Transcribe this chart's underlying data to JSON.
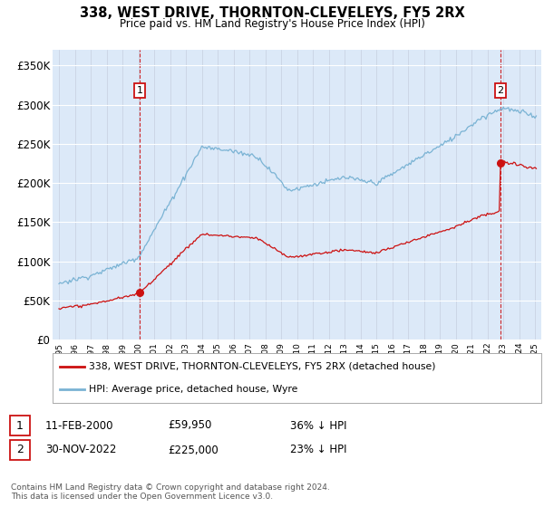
{
  "title": "338, WEST DRIVE, THORNTON-CLEVELEYS, FY5 2RX",
  "subtitle": "Price paid vs. HM Land Registry's House Price Index (HPI)",
  "ylabel_ticks": [
    "£0",
    "£50K",
    "£100K",
    "£150K",
    "£200K",
    "£250K",
    "£300K",
    "£350K"
  ],
  "ytick_values": [
    0,
    50000,
    100000,
    150000,
    200000,
    250000,
    300000,
    350000
  ],
  "ylim": [
    0,
    370000
  ],
  "plot_bg": "#dce9f8",
  "line_color_hpi": "#7ab3d4",
  "line_color_price": "#cc1111",
  "sale1_price": 59950,
  "sale1_year": 2000.08,
  "sale2_price": 225000,
  "sale2_year": 2022.87,
  "legend_label_price": "338, WEST DRIVE, THORNTON-CLEVELEYS, FY5 2RX (detached house)",
  "legend_label_hpi": "HPI: Average price, detached house, Wyre",
  "note1_date": "11-FEB-2000",
  "note1_price": "£59,950",
  "note1_pct": "36% ↓ HPI",
  "note2_date": "30-NOV-2022",
  "note2_price": "£225,000",
  "note2_pct": "23% ↓ HPI",
  "footer": "Contains HM Land Registry data © Crown copyright and database right 2024.\nThis data is licensed under the Open Government Licence v3.0."
}
